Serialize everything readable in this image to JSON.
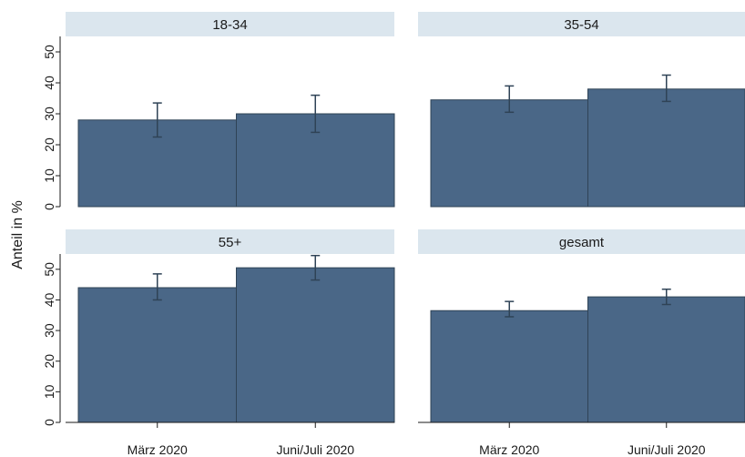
{
  "chart_data": {
    "type": "bar",
    "ylabel": "Anteil in %",
    "xlabel": "",
    "categories": [
      "März 2020",
      "Juni/Juli 2020"
    ],
    "ylim": [
      0,
      55
    ],
    "yticks": [
      0,
      10,
      20,
      30,
      40,
      50
    ],
    "grid": false,
    "bar_color": "#4a6787",
    "strip_color": "#dbe6ee",
    "error_bar_color": "#2f4356",
    "panels": [
      {
        "title": "18-34",
        "values": [
          28,
          30
        ],
        "ci_low": [
          22.5,
          24
        ],
        "ci_high": [
          33.5,
          36
        ]
      },
      {
        "title": "35-54",
        "values": [
          34.5,
          38
        ],
        "ci_low": [
          30.5,
          34
        ],
        "ci_high": [
          39,
          42.5
        ]
      },
      {
        "title": "55+",
        "values": [
          44,
          50.5
        ],
        "ci_low": [
          40,
          46.5
        ],
        "ci_high": [
          48.5,
          54.5
        ]
      },
      {
        "title": "gesamt",
        "values": [
          36.5,
          41
        ],
        "ci_low": [
          34.5,
          38.5
        ],
        "ci_high": [
          39.5,
          43.5
        ]
      }
    ]
  }
}
